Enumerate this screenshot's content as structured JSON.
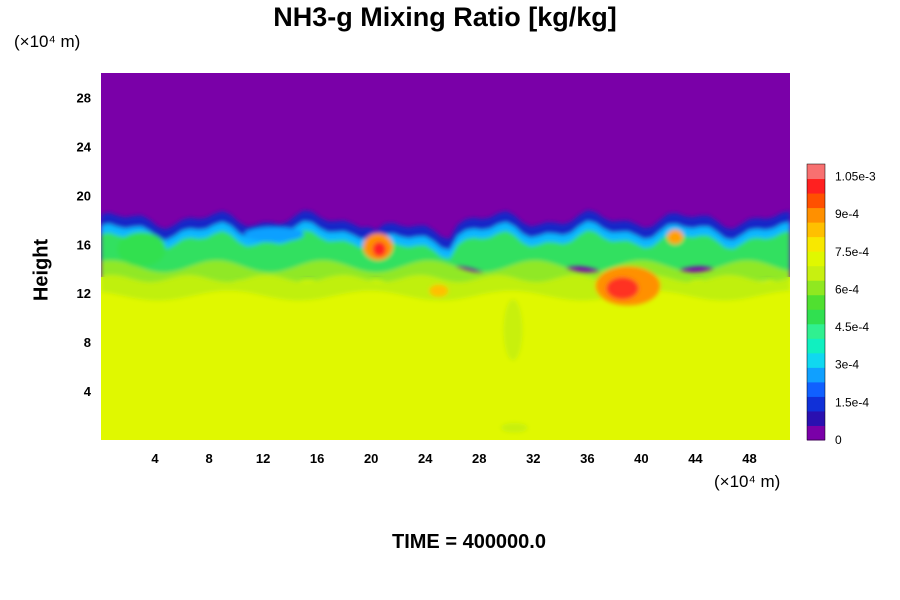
{
  "chart_data": {
    "type": "heatmap",
    "title": "NH3-g Mixing Ratio [kg/kg]",
    "ylabel": "Height",
    "xlabel": "",
    "x_unit": "(×10⁴ m)",
    "y_unit": "(×10⁴ m)",
    "footer": "TIME = 400000.0",
    "xlim": [
      0,
      51
    ],
    "ylim": [
      0,
      30
    ],
    "x_ticks": [
      "4",
      "8",
      "12",
      "16",
      "20",
      "24",
      "28",
      "32",
      "36",
      "40",
      "44",
      "48"
    ],
    "y_ticks": [
      "4",
      "8",
      "12",
      "16",
      "20",
      "24",
      "28"
    ],
    "colorbar": {
      "range": [
        0,
        0.0011
      ],
      "tick_labels": [
        "0",
        "1.5e-4",
        "3e-4",
        "4.5e-4",
        "6e-4",
        "7.5e-4",
        "9e-4",
        "1.05e-3"
      ],
      "colors": [
        "#7a00a8",
        "#2a10b0",
        "#1030d8",
        "#1060ff",
        "#10a0ff",
        "#10d8f0",
        "#10f0c0",
        "#30f090",
        "#30e050",
        "#50e030",
        "#90e820",
        "#c8f010",
        "#e0f800",
        "#f8e800",
        "#ffc000",
        "#ff9000",
        "#ff5000",
        "#ff2020",
        "#f87070"
      ]
    },
    "field_regions": {
      "upper_layer": {
        "y_range": [
          18,
          30
        ],
        "value": 0.0
      },
      "lower_layer": {
        "y_range": [
          0,
          13
        ],
        "value": 0.00078
      },
      "mixing_zone": {
        "y_range": [
          11,
          18.5
        ],
        "value_range": [
          0.0,
          0.00105
        ]
      }
    },
    "colors": {
      "plot_fill_upper": "#7a00a8",
      "plot_fill_lower": "#e0f800"
    }
  }
}
